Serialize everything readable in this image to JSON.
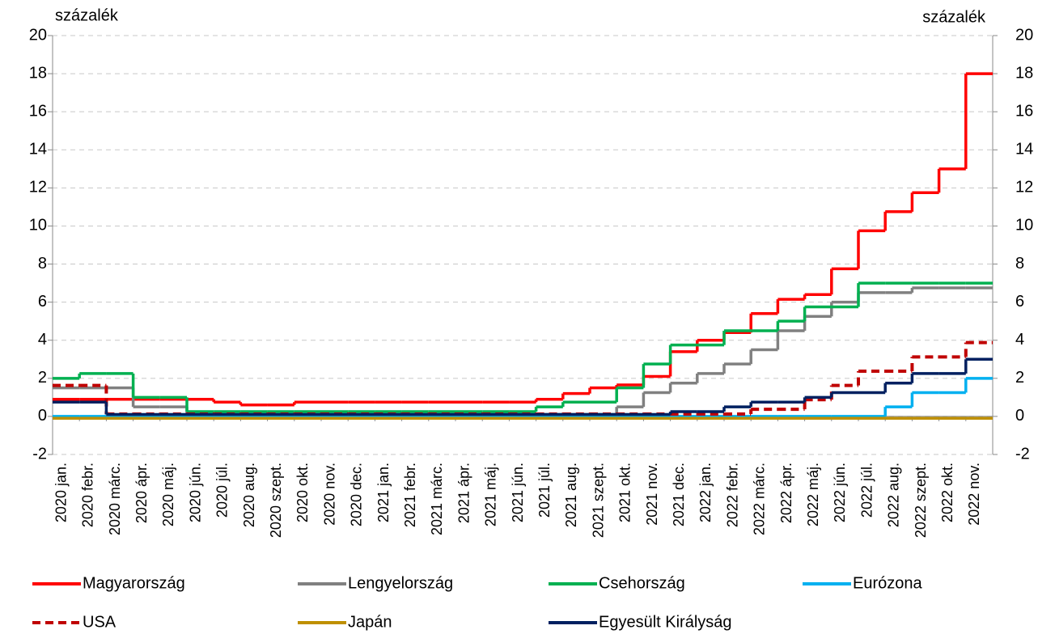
{
  "chart_data": {
    "type": "step",
    "y_label": "százalék",
    "y2_label": "százalék",
    "categories": [
      "2020 jan.",
      "2020 febr.",
      "2020 márc.",
      "2020 ápr.",
      "2020 máj.",
      "2020 jún.",
      "2020 júl.",
      "2020 aug.",
      "2020 szept.",
      "2020 okt.",
      "2020 nov.",
      "2020 dec.",
      "2021 jan.",
      "2021 febr.",
      "2021 márc.",
      "2021 ápr.",
      "2021 máj.",
      "2021 jún.",
      "2021 júl.",
      "2021 aug.",
      "2021 szept.",
      "2021 okt.",
      "2021 nov.",
      "2021 dec.",
      "2022 jan.",
      "2022 febr.",
      "2022 márc.",
      "2022 ápr.",
      "2022 máj.",
      "2022 jún.",
      "2022 júl.",
      "2022 aug.",
      "2022 szept.",
      "2022 okt.",
      "2022 nov."
    ],
    "series": [
      {
        "name": "Magyarország",
        "color": "#ff0000",
        "values": [
          0.9,
          0.9,
          0.9,
          0.9,
          0.9,
          0.9,
          0.75,
          0.6,
          0.6,
          0.75,
          0.75,
          0.75,
          0.75,
          0.75,
          0.75,
          0.75,
          0.75,
          0.75,
          0.9,
          1.2,
          1.5,
          1.65,
          2.1,
          3.4,
          4.0,
          4.4,
          5.4,
          6.15,
          6.4,
          7.75,
          9.75,
          10.75,
          11.75,
          13,
          18
        ]
      },
      {
        "name": "Lengyelország",
        "color": "#808080",
        "values": [
          1.5,
          1.5,
          1.5,
          0.5,
          0.5,
          0.1,
          0.1,
          0.1,
          0.1,
          0.1,
          0.1,
          0.1,
          0.1,
          0.1,
          0.1,
          0.1,
          0.1,
          0.1,
          0.1,
          0.1,
          0.1,
          0.5,
          1.25,
          1.75,
          2.25,
          2.75,
          3.5,
          4.5,
          5.25,
          6.0,
          6.5,
          6.5,
          6.75,
          6.75,
          6.75
        ]
      },
      {
        "name": "Csehország",
        "color": "#00b050",
        "values": [
          2.0,
          2.25,
          2.25,
          1.0,
          1.0,
          0.25,
          0.25,
          0.25,
          0.25,
          0.25,
          0.25,
          0.25,
          0.25,
          0.25,
          0.25,
          0.25,
          0.25,
          0.25,
          0.5,
          0.75,
          0.75,
          1.5,
          2.75,
          3.75,
          3.75,
          4.5,
          4.5,
          5.0,
          5.75,
          5.75,
          7.0,
          7.0,
          7.0,
          7.0,
          7.0
        ]
      },
      {
        "name": "Eurózona",
        "color": "#00b0f0",
        "values": [
          0,
          0,
          0,
          0,
          0,
          0,
          0,
          0,
          0,
          0,
          0,
          0,
          0,
          0,
          0,
          0,
          0,
          0,
          0,
          0,
          0,
          0,
          0,
          0,
          0,
          0,
          0,
          0,
          0,
          0,
          0,
          0.5,
          1.25,
          1.25,
          2.0
        ]
      },
      {
        "name": "USA",
        "color": "#c00000",
        "dash": "dashed",
        "values": [
          1.625,
          1.625,
          0.125,
          0.125,
          0.125,
          0.125,
          0.125,
          0.125,
          0.125,
          0.125,
          0.125,
          0.125,
          0.125,
          0.125,
          0.125,
          0.125,
          0.125,
          0.125,
          0.125,
          0.125,
          0.125,
          0.125,
          0.125,
          0.125,
          0.125,
          0.125,
          0.375,
          0.375,
          0.875,
          1.625,
          2.375,
          2.375,
          3.125,
          3.125,
          3.875
        ]
      },
      {
        "name": "Japán",
        "color": "#bf9000",
        "values": [
          -0.1,
          -0.1,
          -0.1,
          -0.1,
          -0.1,
          -0.1,
          -0.1,
          -0.1,
          -0.1,
          -0.1,
          -0.1,
          -0.1,
          -0.1,
          -0.1,
          -0.1,
          -0.1,
          -0.1,
          -0.1,
          -0.1,
          -0.1,
          -0.1,
          -0.1,
          -0.1,
          -0.1,
          -0.1,
          -0.1,
          -0.1,
          -0.1,
          -0.1,
          -0.1,
          -0.1,
          -0.1,
          -0.1,
          -0.1,
          -0.1
        ]
      },
      {
        "name": "Egyesült Királyság",
        "color": "#002060",
        "values": [
          0.75,
          0.75,
          0.1,
          0.1,
          0.1,
          0.1,
          0.1,
          0.1,
          0.1,
          0.1,
          0.1,
          0.1,
          0.1,
          0.1,
          0.1,
          0.1,
          0.1,
          0.1,
          0.1,
          0.1,
          0.1,
          0.1,
          0.1,
          0.25,
          0.25,
          0.5,
          0.75,
          0.75,
          1.0,
          1.25,
          1.25,
          1.75,
          2.25,
          2.25,
          3.0
        ]
      }
    ],
    "ylim": [
      -2,
      20
    ],
    "yticks": [
      -2,
      0,
      2,
      4,
      6,
      8,
      10,
      12,
      14,
      16,
      18,
      20
    ],
    "y2lim": [
      -2,
      20
    ],
    "y2ticks": [
      -2,
      0,
      2,
      4,
      6,
      8,
      10,
      12,
      14,
      16,
      18,
      20
    ],
    "grid": true,
    "legend": "bottom"
  }
}
